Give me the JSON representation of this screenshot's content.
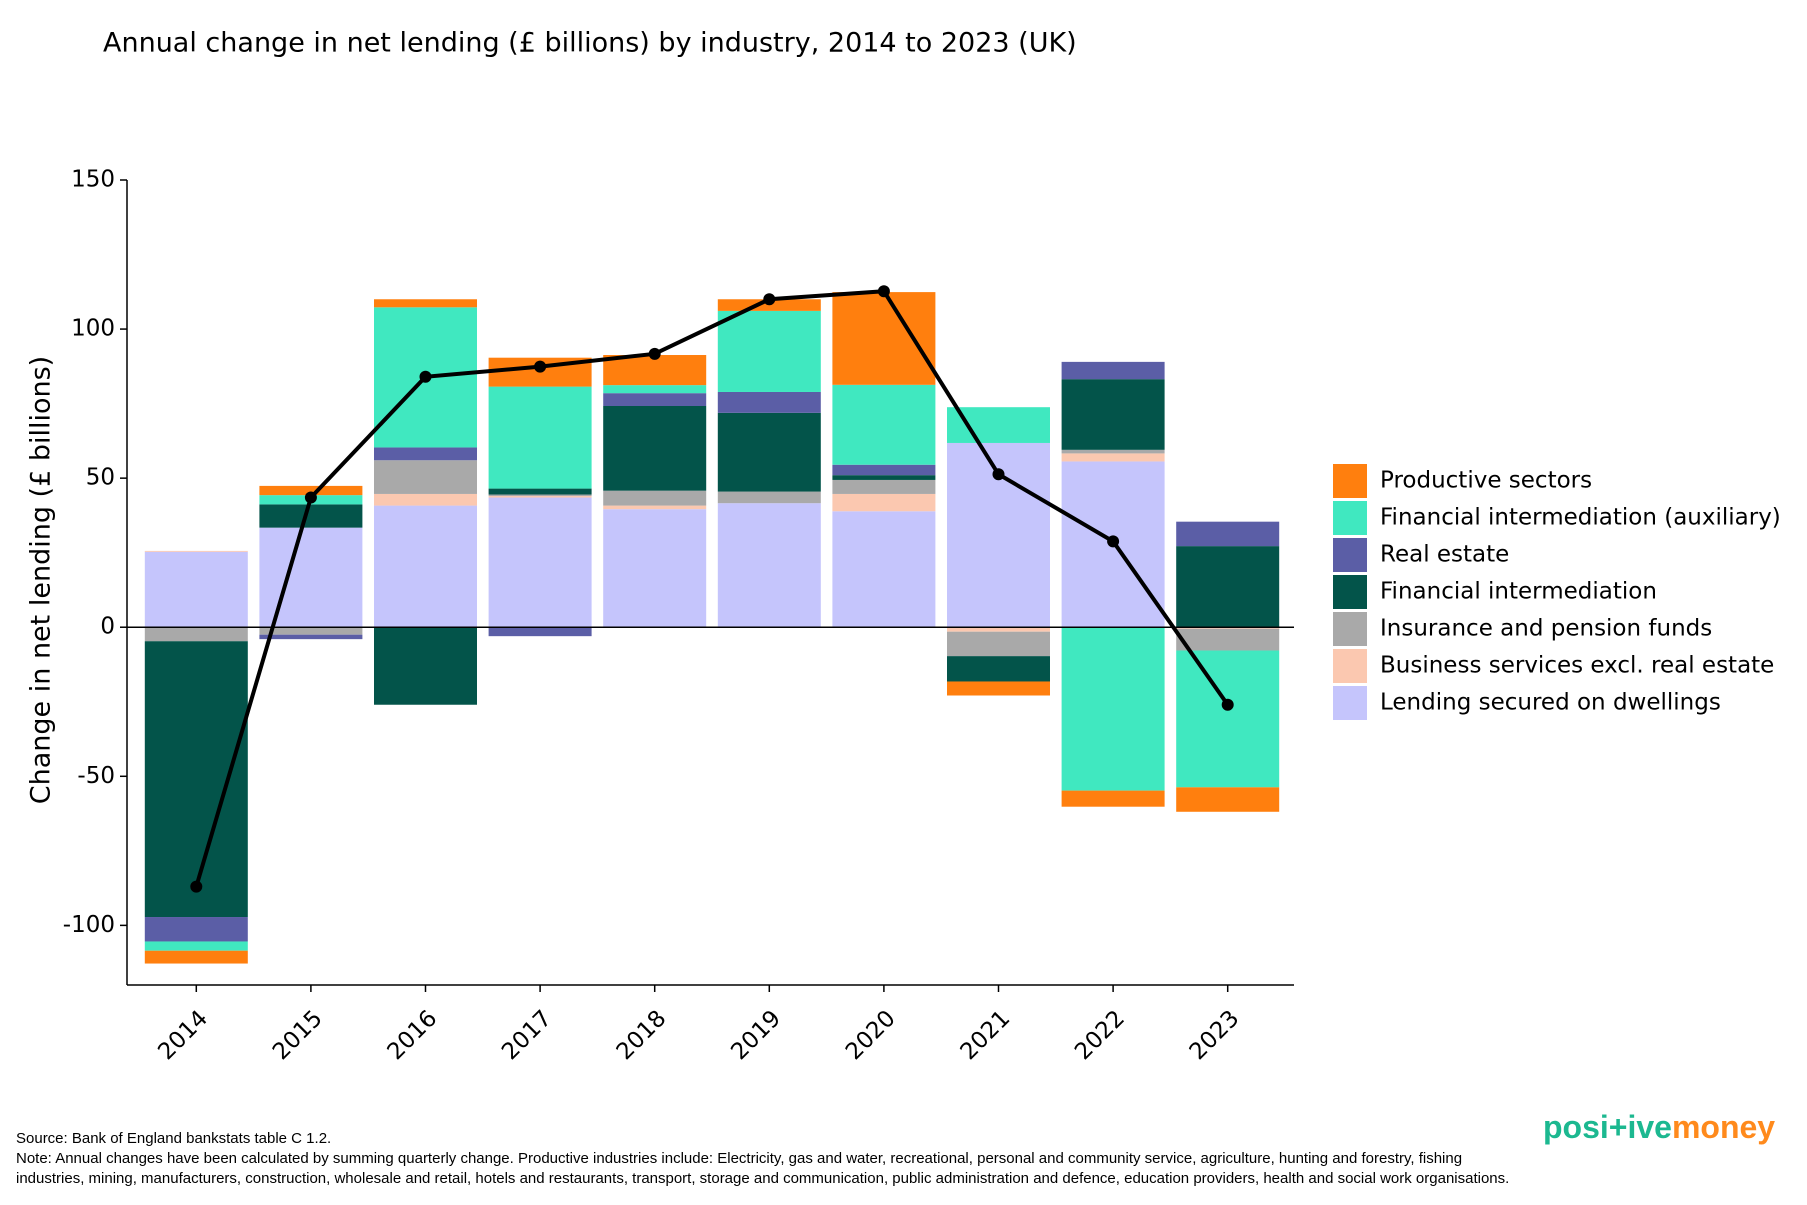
{
  "chart_data": {
    "type": "stacked_bar_line",
    "title": "Annual change in net lending (£ billions) by industry, 2014 to 2023 (UK)",
    "y_label": "Change in net lending (£ billions)",
    "categories": [
      "2014",
      "2015",
      "2016",
      "2017",
      "2018",
      "2019",
      "2020",
      "2021",
      "2022",
      "2023"
    ],
    "series": [
      {
        "name": "Productive sectors",
        "color": "#ff7f0e",
        "values": [
          -4.3,
          3.1,
          2.7,
          9.7,
          10.1,
          3.9,
          31.1,
          -4.7,
          -5.4,
          -8.2
        ]
      },
      {
        "name": "Financial intermediation (auxiliary)",
        "color": "#40e8c0",
        "values": [
          -3.1,
          3.1,
          47,
          34.2,
          2.7,
          27.2,
          26.8,
          12,
          -54.8,
          -45.9
        ]
      },
      {
        "name": "Real estate",
        "color": "#5b5ea6",
        "values": [
          -8.2,
          -1.5,
          4.3,
          -3,
          4.3,
          7,
          3.5,
          0,
          5.8,
          8.2
        ]
      },
      {
        "name": "Financial intermediation",
        "color": "#03544a",
        "values": [
          -92.5,
          7.8,
          -26,
          2,
          28.4,
          26.4,
          1.6,
          -8.5,
          23.7,
          27.2
        ]
      },
      {
        "name": "Insurance and pension funds",
        "color": "#a9a9a9",
        "values": [
          -4.7,
          -2.5,
          11.3,
          0.5,
          5,
          3.9,
          4.7,
          -8.2,
          1.2,
          -7.3
        ]
      },
      {
        "name": "Business services excl. real estate",
        "color": "#fbc8b0",
        "values": [
          0.3,
          0,
          3.9,
          0.5,
          1.2,
          0,
          5.8,
          -1.5,
          2.7,
          -0.5
        ]
      },
      {
        "name": "Lending secured on dwellings",
        "color": "#c5c5fc",
        "values": [
          25.3,
          33.4,
          40.8,
          43.5,
          39.6,
          41.6,
          38.9,
          61.8,
          55.6,
          0
        ]
      }
    ],
    "line": {
      "color": "#000000",
      "values": [
        -87,
        43.5,
        84,
        87.4,
        91.7,
        110,
        112.7,
        51.3,
        28.8,
        -26
      ]
    },
    "ylim": [
      -120,
      150
    ],
    "yticks": [
      -100,
      -50,
      0,
      50,
      100,
      150
    ],
    "legend": "right",
    "source": "Source: Bank of England bankstats table C 1.2.",
    "note": [
      "Note: Annual changes have been calculated by summing quarterly change. Productive industries include: Electricity, gas and water, recreational, personal and community service, agriculture, hunting and forestry, fishing",
      "industries, mining, manufacturers, construction, wholesale and retail, hotels and restaurants, transport, storage and communication, public administration and defence, education providers, health and social work organisations."
    ],
    "logo": [
      "posi+ive",
      "money"
    ]
  }
}
